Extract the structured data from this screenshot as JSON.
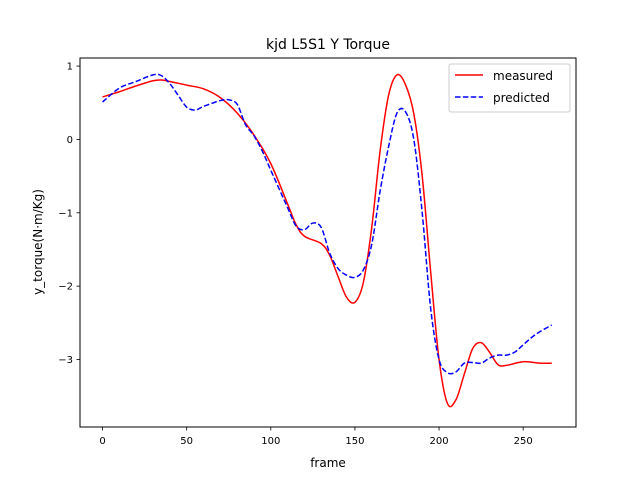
{
  "chart_data": {
    "type": "line",
    "title": "kjd L5S1 Y Torque",
    "xlabel": "frame",
    "ylabel": "y_torque(N·m/Kg)",
    "xlim": [
      -13.4,
      281.4
    ],
    "ylim": [
      -3.92,
      1.11
    ],
    "xticks": [
      0,
      50,
      100,
      150,
      200,
      250
    ],
    "yticks": [
      -3,
      -2,
      -1,
      0,
      1
    ],
    "grid": false,
    "legend_position": "top-right",
    "series": [
      {
        "name": "measured",
        "color": "#ff0000",
        "dash": "solid",
        "points": [
          [
            0,
            0.58
          ],
          [
            10,
            0.65
          ],
          [
            20,
            0.73
          ],
          [
            30,
            0.8
          ],
          [
            35,
            0.81
          ],
          [
            40,
            0.79
          ],
          [
            50,
            0.74
          ],
          [
            60,
            0.69
          ],
          [
            70,
            0.57
          ],
          [
            80,
            0.36
          ],
          [
            90,
            0.06
          ],
          [
            100,
            -0.33
          ],
          [
            110,
            -0.88
          ],
          [
            115,
            -1.16
          ],
          [
            120,
            -1.32
          ],
          [
            130,
            -1.42
          ],
          [
            135,
            -1.58
          ],
          [
            140,
            -1.87
          ],
          [
            145,
            -2.15
          ],
          [
            150,
            -2.22
          ],
          [
            155,
            -1.95
          ],
          [
            160,
            -1.2
          ],
          [
            165,
            -0.15
          ],
          [
            170,
            0.6
          ],
          [
            175,
            0.88
          ],
          [
            180,
            0.75
          ],
          [
            185,
            0.35
          ],
          [
            190,
            -0.5
          ],
          [
            195,
            -1.8
          ],
          [
            200,
            -3.0
          ],
          [
            205,
            -3.6
          ],
          [
            210,
            -3.55
          ],
          [
            215,
            -3.2
          ],
          [
            220,
            -2.85
          ],
          [
            225,
            -2.77
          ],
          [
            230,
            -2.9
          ],
          [
            235,
            -3.07
          ],
          [
            240,
            -3.08
          ],
          [
            250,
            -3.03
          ],
          [
            260,
            -3.05
          ],
          [
            267,
            -3.05
          ]
        ]
      },
      {
        "name": "predicted",
        "color": "#0000ff",
        "dash": "dashed",
        "points": [
          [
            0,
            0.51
          ],
          [
            10,
            0.7
          ],
          [
            20,
            0.79
          ],
          [
            30,
            0.88
          ],
          [
            35,
            0.87
          ],
          [
            40,
            0.76
          ],
          [
            45,
            0.6
          ],
          [
            50,
            0.44
          ],
          [
            55,
            0.4
          ],
          [
            60,
            0.45
          ],
          [
            70,
            0.53
          ],
          [
            75,
            0.54
          ],
          [
            80,
            0.48
          ],
          [
            85,
            0.2
          ],
          [
            90,
            0.05
          ],
          [
            95,
            -0.16
          ],
          [
            100,
            -0.42
          ],
          [
            110,
            -0.93
          ],
          [
            115,
            -1.18
          ],
          [
            120,
            -1.23
          ],
          [
            125,
            -1.14
          ],
          [
            130,
            -1.2
          ],
          [
            135,
            -1.55
          ],
          [
            140,
            -1.76
          ],
          [
            145,
            -1.85
          ],
          [
            150,
            -1.88
          ],
          [
            155,
            -1.78
          ],
          [
            160,
            -1.43
          ],
          [
            165,
            -0.7
          ],
          [
            170,
            -0.1
          ],
          [
            175,
            0.36
          ],
          [
            180,
            0.38
          ],
          [
            185,
            0.0
          ],
          [
            190,
            -1.0
          ],
          [
            195,
            -2.3
          ],
          [
            200,
            -3.0
          ],
          [
            205,
            -3.18
          ],
          [
            210,
            -3.17
          ],
          [
            215,
            -3.05
          ],
          [
            220,
            -3.04
          ],
          [
            225,
            -3.05
          ],
          [
            230,
            -2.98
          ],
          [
            235,
            -2.94
          ],
          [
            240,
            -2.94
          ],
          [
            245,
            -2.9
          ],
          [
            250,
            -2.8
          ],
          [
            255,
            -2.7
          ],
          [
            260,
            -2.62
          ],
          [
            267,
            -2.53
          ]
        ]
      }
    ]
  }
}
